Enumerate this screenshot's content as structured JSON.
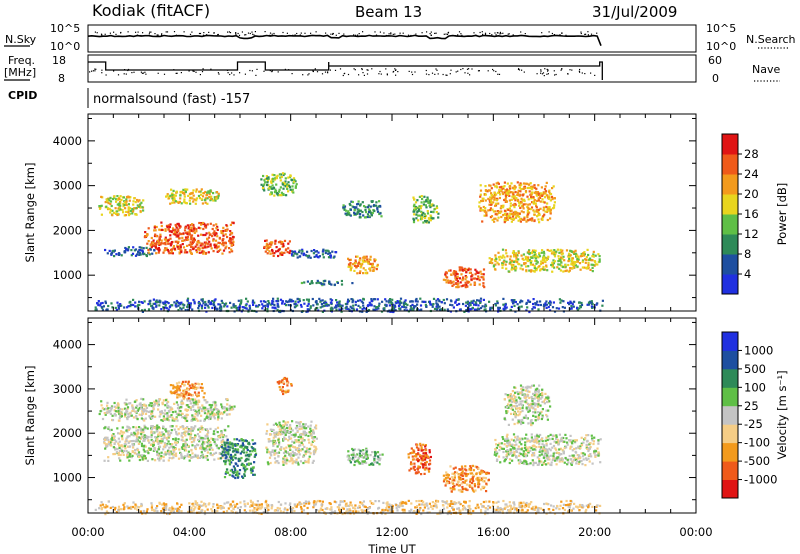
{
  "header": {
    "station": "Kodiak (fitACF)",
    "beam": "Beam 13",
    "date": "31/Jul/2009"
  },
  "summary": {
    "noise_left_label": "N.Sky",
    "noise_left_ticks": [
      "10^5",
      "10^0"
    ],
    "noise_right_label": "N.Search",
    "noise_right_ticks": [
      "10^5",
      "10^0"
    ],
    "freq_label_1": "Freq.",
    "freq_label_2": "[MHz]",
    "freq_ticks": [
      "18",
      "8"
    ],
    "nave_label": "Nave",
    "nave_ticks": [
      "60",
      "0"
    ],
    "cpid_label": "CPID",
    "cpid_value": "normalsound (fast) -157"
  },
  "colors": {
    "power_scale": [
      "#2030e0",
      "#1e4fa0",
      "#2e8a58",
      "#5fbf46",
      "#e8d51e",
      "#f39a1c",
      "#ef5a1a",
      "#e01414"
    ],
    "velocity_scale": [
      "#e01414",
      "#ef5a1a",
      "#f39a1c",
      "#f5cd86",
      "#c4c4c4",
      "#5fbf46",
      "#2e8a58",
      "#1e4fa0",
      "#2030e0"
    ]
  },
  "chart_data": [
    {
      "type": "heatmap",
      "name": "power",
      "ylabel": "Slant Range [km]",
      "y_ticks": [
        "1000",
        "2000",
        "3000",
        "4000"
      ],
      "ylim": [
        200,
        4600
      ],
      "x_ticks": [
        "00:00",
        "04:00",
        "08:00",
        "12:00",
        "16:00",
        "20:00",
        "00:00"
      ],
      "xlim_hours": [
        0,
        24
      ],
      "colorbar_label": "Power [dB]",
      "colorbar_ticks": [
        "4",
        "8",
        "12",
        "16",
        "20",
        "24",
        "28"
      ],
      "data_end_hour": 20.3,
      "regions": [
        {
          "t0": 0.4,
          "t1": 2.2,
          "r0": 2350,
          "r1": 2800,
          "level": 4
        },
        {
          "t0": 0.6,
          "t1": 2.6,
          "r0": 1450,
          "r1": 1650,
          "level": 1
        },
        {
          "t0": 2.2,
          "t1": 5.8,
          "r0": 1500,
          "r1": 2200,
          "level": 6
        },
        {
          "t0": 3.0,
          "t1": 5.2,
          "r0": 2600,
          "r1": 2950,
          "level": 4
        },
        {
          "t0": 6.8,
          "t1": 8.2,
          "r0": 2800,
          "r1": 3300,
          "level": 3
        },
        {
          "t0": 6.9,
          "t1": 8.0,
          "r0": 1450,
          "r1": 1800,
          "level": 6
        },
        {
          "t0": 8.0,
          "t1": 9.8,
          "r0": 1400,
          "r1": 1600,
          "level": 1
        },
        {
          "t0": 8.4,
          "t1": 10.4,
          "r0": 800,
          "r1": 900,
          "level": 2
        },
        {
          "t0": 10.2,
          "t1": 11.4,
          "r0": 1050,
          "r1": 1450,
          "level": 5
        },
        {
          "t0": 10.0,
          "t1": 11.6,
          "r0": 2300,
          "r1": 2700,
          "level": 2
        },
        {
          "t0": 12.8,
          "t1": 13.8,
          "r0": 2200,
          "r1": 2800,
          "level": 3
        },
        {
          "t0": 14.0,
          "t1": 15.6,
          "r0": 750,
          "r1": 1200,
          "level": 6
        },
        {
          "t0": 15.4,
          "t1": 18.4,
          "r0": 2200,
          "r1": 3100,
          "level": 5
        },
        {
          "t0": 15.8,
          "t1": 20.2,
          "r0": 1100,
          "r1": 1600,
          "level": 4
        },
        {
          "t0": 0.2,
          "t1": 20.3,
          "r0": 200,
          "r1": 500,
          "level": 1
        }
      ]
    },
    {
      "type": "heatmap",
      "name": "velocity",
      "ylabel": "Slant Range [km]",
      "y_ticks": [
        "1000",
        "2000",
        "3000",
        "4000"
      ],
      "ylim": [
        200,
        4600
      ],
      "x_ticks": [
        "00:00",
        "04:00",
        "08:00",
        "12:00",
        "16:00",
        "20:00",
        "00:00"
      ],
      "xlim_hours": [
        0,
        24
      ],
      "xlabel": "Time UT",
      "colorbar_label": "Velocity [m s⁻¹]",
      "colorbar_ticks": [
        "1000",
        "500",
        "100",
        "25",
        "-25",
        "-100",
        "-500",
        "-1000"
      ],
      "data_end_hour": 20.3,
      "regions": [
        {
          "t0": 0.4,
          "t1": 5.8,
          "r0": 2300,
          "r1": 2800,
          "level": 4
        },
        {
          "t0": 0.5,
          "t1": 5.5,
          "r0": 1400,
          "r1": 2200,
          "level": 4
        },
        {
          "t0": 3.2,
          "t1": 4.6,
          "r0": 2800,
          "r1": 3200,
          "level": 2
        },
        {
          "t0": 5.2,
          "t1": 6.6,
          "r0": 1000,
          "r1": 1900,
          "level": 6
        },
        {
          "t0": 7.0,
          "t1": 9.0,
          "r0": 1300,
          "r1": 2300,
          "level": 4
        },
        {
          "t0": 7.4,
          "t1": 8.0,
          "r0": 2900,
          "r1": 3300,
          "level": 2
        },
        {
          "t0": 10.2,
          "t1": 11.6,
          "r0": 1300,
          "r1": 1700,
          "level": 5
        },
        {
          "t0": 12.6,
          "t1": 13.5,
          "r0": 1100,
          "r1": 1800,
          "level": 1
        },
        {
          "t0": 14.0,
          "t1": 15.8,
          "r0": 700,
          "r1": 1300,
          "level": 2
        },
        {
          "t0": 16.0,
          "t1": 20.2,
          "r0": 1300,
          "r1": 2000,
          "level": 4
        },
        {
          "t0": 16.4,
          "t1": 18.2,
          "r0": 2200,
          "r1": 3100,
          "level": 4
        },
        {
          "t0": 0.2,
          "t1": 20.3,
          "r0": 200,
          "r1": 500,
          "level": 3
        }
      ]
    }
  ]
}
